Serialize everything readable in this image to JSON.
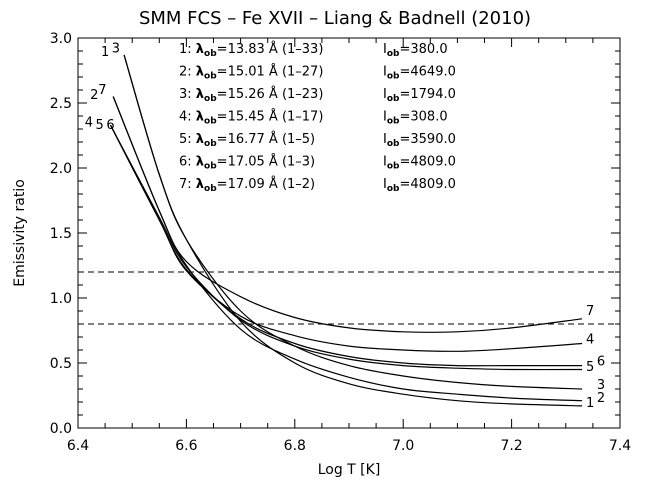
{
  "chart_data": {
    "type": "line",
    "title": "SMM FCS – Fe XVII – Liang & Badnell (2010)",
    "xlabel": "Log T [K]",
    "ylabel": "Emissivity ratio",
    "xlim": [
      6.4,
      7.4
    ],
    "ylim": [
      0.0,
      3.0
    ],
    "xticks": [
      6.4,
      6.6,
      6.8,
      7.0,
      7.2,
      7.4
    ],
    "xtick_labels": [
      "6.4",
      "6.6",
      "6.8",
      "7.0",
      "7.2",
      "7.4"
    ],
    "yticks": [
      0.0,
      0.5,
      1.0,
      1.5,
      2.0,
      2.5,
      3.0
    ],
    "ytick_labels": [
      "0.0",
      "0.5",
      "1.0",
      "1.5",
      "2.0",
      "2.5",
      "3.0"
    ],
    "reference_lines": [
      1.2,
      0.8
    ],
    "grid": false,
    "legend": [
      {
        "id": "1",
        "lambda": "13.83",
        "transition": "(1–33)",
        "iob": "380.0"
      },
      {
        "id": "2",
        "lambda": "15.01",
        "transition": "(1–27)",
        "iob": "4649.0"
      },
      {
        "id": "3",
        "lambda": "15.26",
        "transition": "(1–23)",
        "iob": "1794.0"
      },
      {
        "id": "4",
        "lambda": "15.45",
        "transition": "(1–17)",
        "iob": "308.0"
      },
      {
        "id": "5",
        "lambda": "16.77",
        "transition": "(1–5)",
        "iob": "3590.0"
      },
      {
        "id": "6",
        "lambda": "17.05",
        "transition": "(1–3)",
        "iob": "4809.0"
      },
      {
        "id": "7",
        "lambda": "17.09",
        "transition": "(1–2)",
        "iob": "4809.0"
      }
    ],
    "legend_placement": "top",
    "legend_lambda_symbol": "λ",
    "legend_sub": "ob",
    "legend_intensity_symbol": "I",
    "legend_unit": "Å",
    "series": [
      {
        "id": "1",
        "x": [
          6.485,
          6.55,
          6.6,
          6.7,
          6.8,
          6.9,
          7.0,
          7.1,
          7.2,
          7.33
        ],
        "y": [
          2.87,
          1.95,
          1.45,
          0.82,
          0.5,
          0.34,
          0.26,
          0.21,
          0.185,
          0.17
        ]
      },
      {
        "id": "2",
        "x": [
          6.465,
          6.55,
          6.6,
          6.7,
          6.8,
          6.9,
          7.0,
          7.1,
          7.2,
          7.33
        ],
        "y": [
          2.55,
          1.67,
          1.25,
          0.76,
          0.53,
          0.39,
          0.3,
          0.26,
          0.23,
          0.21
        ]
      },
      {
        "id": "3",
        "x": [
          6.485,
          6.55,
          6.6,
          6.7,
          6.8,
          6.9,
          7.0,
          7.1,
          7.2,
          7.33
        ],
        "y": [
          2.87,
          1.95,
          1.45,
          0.9,
          0.63,
          0.48,
          0.4,
          0.35,
          0.32,
          0.3
        ]
      },
      {
        "id": "4",
        "x": [
          6.46,
          6.55,
          6.6,
          6.7,
          6.8,
          6.9,
          7.0,
          7.1,
          7.2,
          7.33
        ],
        "y": [
          2.33,
          1.6,
          1.21,
          0.86,
          0.71,
          0.63,
          0.6,
          0.59,
          0.61,
          0.65
        ]
      },
      {
        "id": "5",
        "x": [
          6.46,
          6.55,
          6.6,
          6.7,
          6.8,
          6.9,
          7.0,
          7.1,
          7.2,
          7.33
        ],
        "y": [
          2.33,
          1.62,
          1.24,
          0.83,
          0.63,
          0.53,
          0.48,
          0.46,
          0.45,
          0.45
        ]
      },
      {
        "id": "6",
        "x": [
          6.46,
          6.55,
          6.6,
          6.7,
          6.8,
          6.9,
          7.0,
          7.1,
          7.2,
          7.33
        ],
        "y": [
          2.33,
          1.6,
          1.22,
          0.84,
          0.65,
          0.55,
          0.5,
          0.48,
          0.48,
          0.48
        ]
      },
      {
        "id": "7",
        "x": [
          6.465,
          6.55,
          6.6,
          6.7,
          6.8,
          6.9,
          7.0,
          7.1,
          7.2,
          7.33
        ],
        "y": [
          2.55,
          1.67,
          1.28,
          1.01,
          0.85,
          0.77,
          0.74,
          0.74,
          0.77,
          0.84
        ]
      }
    ],
    "start_labels": [
      {
        "text": "1",
        "x": 6.45,
        "y": 2.86
      },
      {
        "text": "3",
        "x": 6.47,
        "y": 2.89
      },
      {
        "text": "2",
        "x": 6.43,
        "y": 2.53
      },
      {
        "text": "7",
        "x": 6.445,
        "y": 2.57
      },
      {
        "text": "4",
        "x": 6.42,
        "y": 2.32
      },
      {
        "text": "5",
        "x": 6.44,
        "y": 2.3
      },
      {
        "text": "6",
        "x": 6.46,
        "y": 2.3
      }
    ],
    "end_labels": [
      {
        "text": "7",
        "x": 7.345,
        "y": 0.87
      },
      {
        "text": "4",
        "x": 7.345,
        "y": 0.65
      },
      {
        "text": "5",
        "x": 7.345,
        "y": 0.44
      },
      {
        "text": "6",
        "x": 7.365,
        "y": 0.48
      },
      {
        "text": "3",
        "x": 7.365,
        "y": 0.3
      },
      {
        "text": "1",
        "x": 7.345,
        "y": 0.16
      },
      {
        "text": "2",
        "x": 7.365,
        "y": 0.2
      }
    ]
  }
}
